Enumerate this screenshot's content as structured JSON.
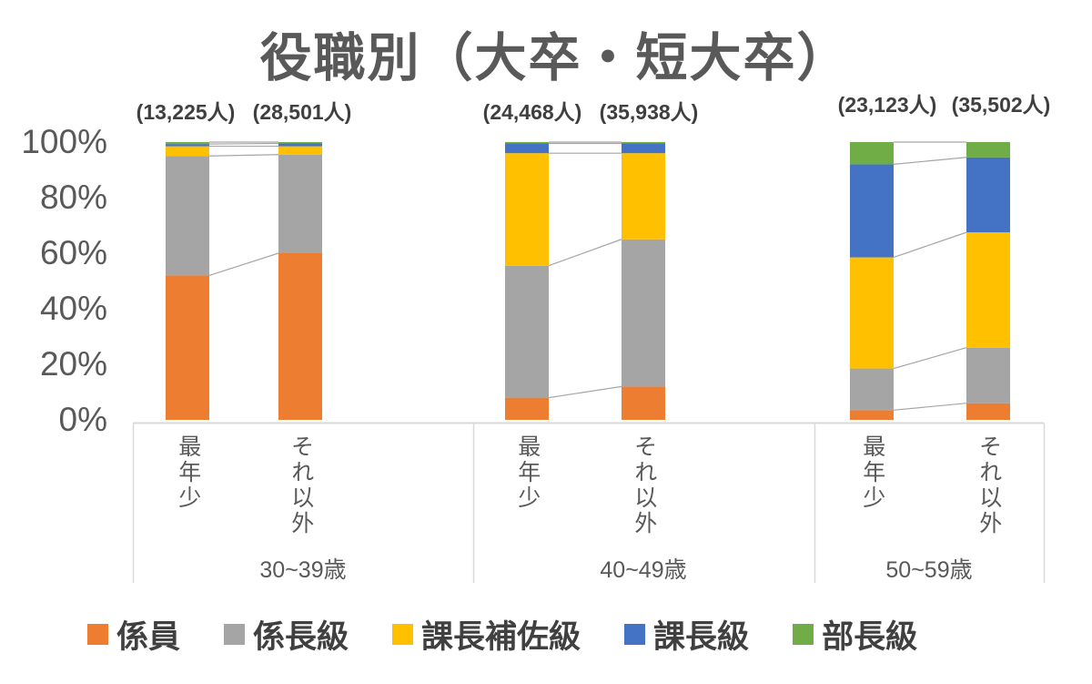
{
  "title": "役職別（大卒・短大卒）",
  "y_axis": {
    "tick_labels": [
      "100%",
      "80%",
      "60%",
      "40%",
      "20%",
      "0%"
    ]
  },
  "legend": [
    {
      "label": "係員",
      "color": "#ED7D31"
    },
    {
      "label": "係長級",
      "color": "#A5A5A5"
    },
    {
      "label": "課長補佐級",
      "color": "#FFC000"
    },
    {
      "label": "課長級",
      "color": "#4472C4"
    },
    {
      "label": "部長級",
      "color": "#70AD47"
    }
  ],
  "chart_data": {
    "type": "bar",
    "stacked": true,
    "percent_stacked": true,
    "title": "役職別（大卒・短大卒）",
    "ylim": [
      0,
      100
    ],
    "grid": false,
    "legend_position": "bottom",
    "series_names": [
      "係員",
      "係長級",
      "課長補佐級",
      "課長級",
      "部長級"
    ],
    "series_colors": [
      "#ED7D31",
      "#A5A5A5",
      "#FFC000",
      "#4472C4",
      "#70AD47"
    ],
    "connector_line_color": "#a6a6a6",
    "axis_line_color": "#d9d9d9",
    "groups": [
      {
        "label": "30~39歳",
        "bars": [
          {
            "category": "最年少",
            "count_label": "(13,225人)",
            "values": [
              52,
              43,
              3.5,
              0.8,
              0.7
            ]
          },
          {
            "category": "それ以外",
            "count_label": "(28,501人)",
            "values": [
              60,
              35.5,
              3,
              1,
              0.5
            ]
          }
        ]
      },
      {
        "label": "40~49歳",
        "bars": [
          {
            "category": "最年少",
            "count_label": "(24,468人)",
            "values": [
              8,
              47.5,
              40.5,
              3.5,
              0.5
            ]
          },
          {
            "category": "それ以外",
            "count_label": "(35,938人)",
            "values": [
              12,
              53,
              31,
              3.5,
              0.5
            ]
          }
        ]
      },
      {
        "label": "50~59歳",
        "bars": [
          {
            "category": "最年少",
            "count_label": "(23,123人)",
            "values": [
              3.5,
              15,
              40,
              33.5,
              8
            ]
          },
          {
            "category": "それ以外",
            "count_label": "(35,502人)",
            "values": [
              6,
              20,
              41.5,
              27,
              5.5
            ]
          }
        ]
      }
    ]
  }
}
